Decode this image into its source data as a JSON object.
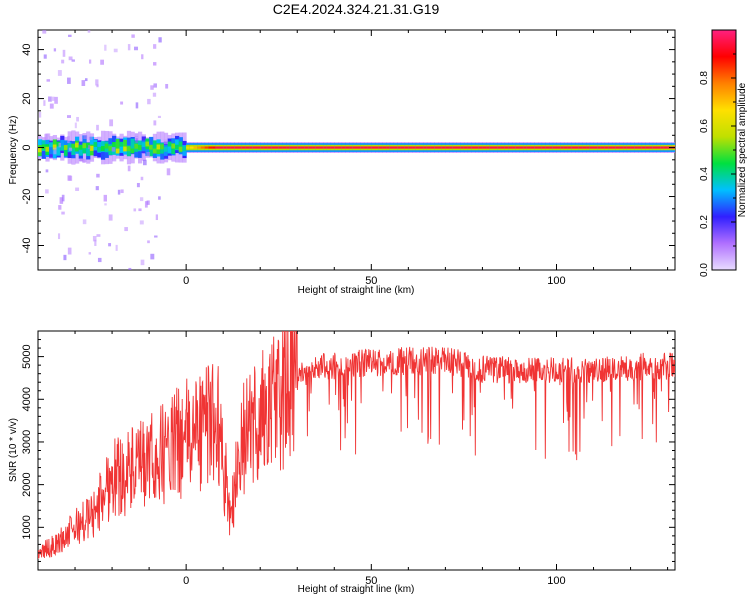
{
  "title": "C2E4.2024.324.21.31.G19",
  "chart_data": [
    {
      "type": "heatmap",
      "xlabel": "Height of straight line (km)",
      "ylabel": "Frequency (Hz)",
      "xlim": [
        -40,
        132
      ],
      "ylim": [
        -50,
        48
      ],
      "x_ticks": [
        0,
        50,
        100
      ],
      "y_ticks": [
        -40,
        -20,
        0,
        20,
        40
      ],
      "description_of_values": "strong tone near 0 Hz across all heights; broad scatter below 0 km",
      "band_center_hz": 0,
      "colorbar": {
        "label": "Normalized spectral amplitude",
        "range": [
          0,
          1
        ],
        "ticks": [
          0.0,
          0.2,
          0.4,
          0.6,
          0.8
        ],
        "colors": [
          "#e8dcff",
          "#b070ff",
          "#3020ff",
          "#00c0ff",
          "#00e040",
          "#c0e000",
          "#ffe000",
          "#ff8000",
          "#ff0000",
          "#ff2080"
        ]
      }
    },
    {
      "type": "line",
      "xlabel": "Height of straight line (km)",
      "ylabel": "SNR (10 * v/v)",
      "xlim": [
        -40,
        132
      ],
      "ylim": [
        0,
        5600
      ],
      "x_ticks": [
        0,
        50,
        100
      ],
      "y_ticks": [
        1000,
        2000,
        3000,
        4000,
        5000
      ],
      "series": [
        {
          "color": "#f03434",
          "x": [
            -40,
            -35,
            -30,
            -25,
            -20,
            -15,
            -10,
            -5,
            0,
            5,
            8,
            10,
            12,
            15,
            20,
            25,
            30,
            35,
            40,
            50,
            60,
            70,
            80,
            90,
            100,
            110,
            120,
            132
          ],
          "y": [
            400,
            600,
            1000,
            1300,
            2200,
            2300,
            2500,
            2800,
            3100,
            3300,
            3800,
            2500,
            1300,
            3000,
            3600,
            4000,
            4500,
            4750,
            4800,
            4850,
            4900,
            4900,
            4700,
            4700,
            4650,
            4700,
            4750,
            4800
          ]
        }
      ]
    }
  ]
}
